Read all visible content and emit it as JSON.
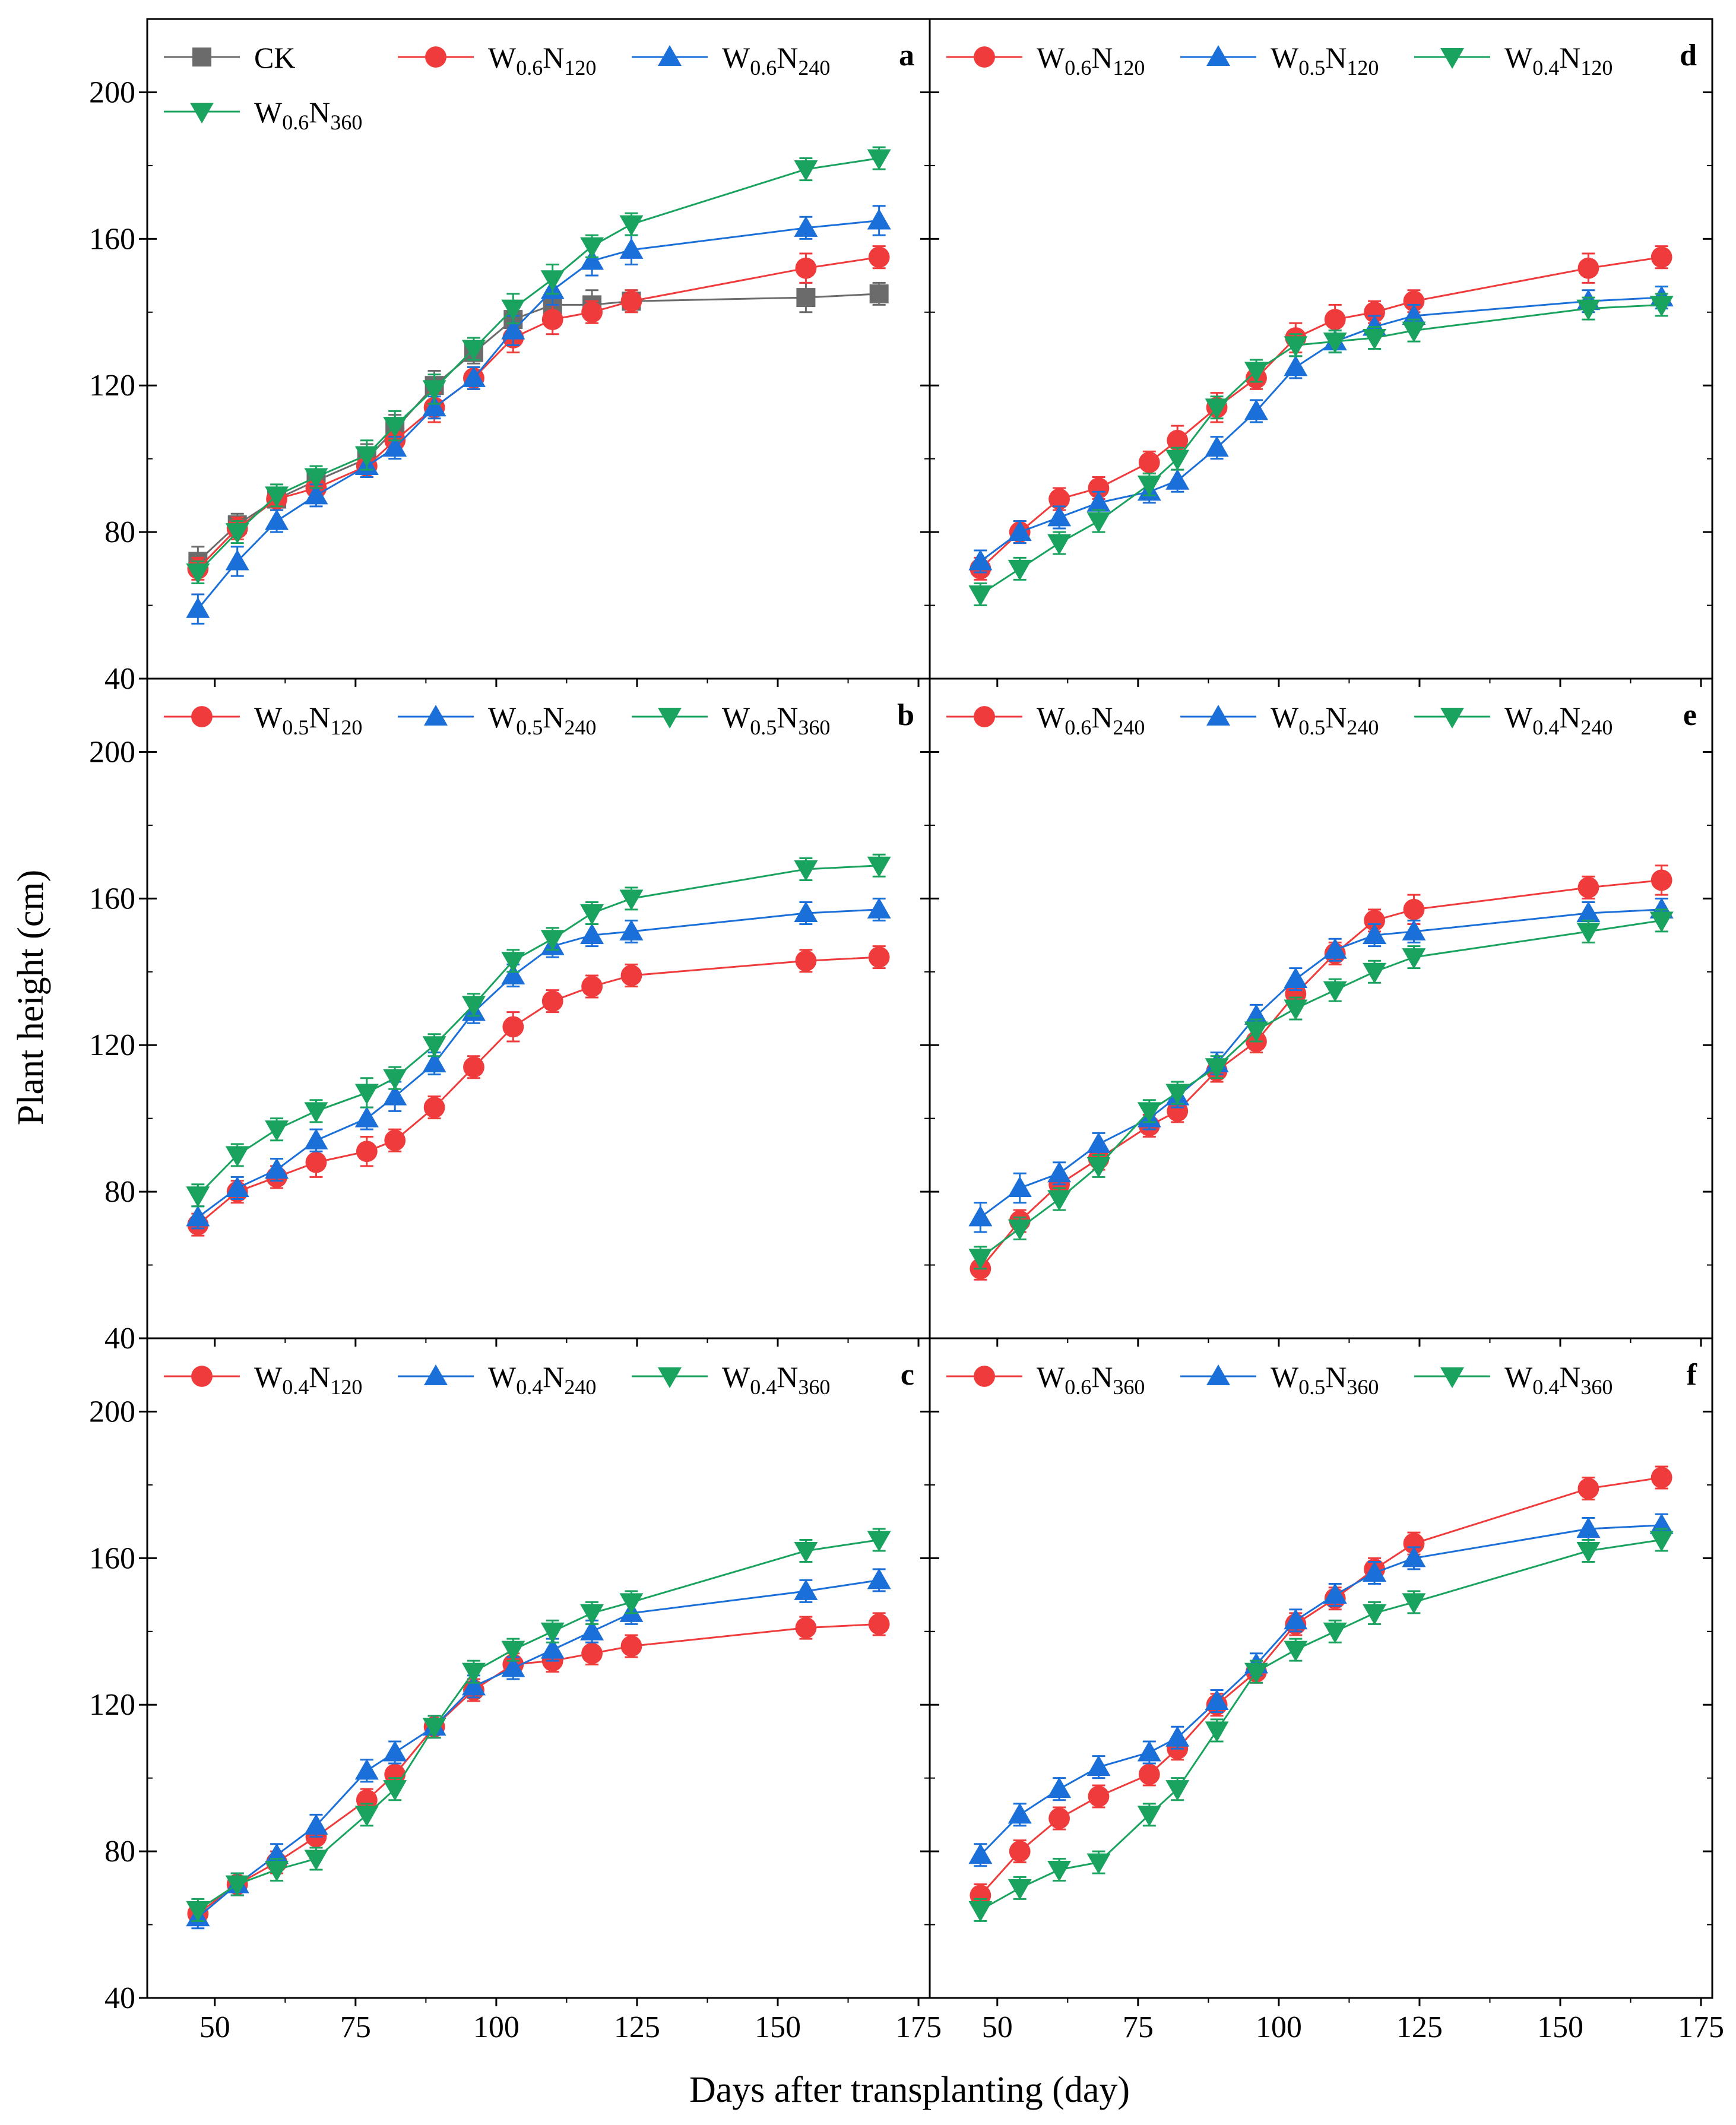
{
  "chart_data": {
    "type": "line",
    "shared": {
      "xlabel": "Days after transplanting (day)",
      "ylabel": "Plant height (cm)",
      "xlim": [
        38,
        177
      ],
      "ylim": [
        40,
        220
      ],
      "xticks": [
        50,
        75,
        100,
        125,
        150,
        175
      ],
      "yticks": [
        40,
        80,
        120,
        160,
        200
      ],
      "x": [
        47,
        54,
        61,
        68,
        77,
        82,
        89,
        96,
        103,
        110,
        117,
        124,
        155,
        168
      ]
    },
    "colors": {
      "CK": "#6b6b6b",
      "red": "#ef3b3b",
      "blue": "#1a6fd9",
      "green": "#1aa35f"
    },
    "panels": [
      {
        "letter": "a",
        "series": [
          {
            "name": "CK",
            "name_main": "CK",
            "name_sub1": "",
            "name_n": "",
            "name_sub2": "",
            "marker": "square",
            "color": "#6b6b6b",
            "values": [
              72,
              82,
              89,
              94,
              100,
              108,
              120,
              129,
              138,
              142,
              142,
              143,
              144,
              145
            ],
            "errors": [
              4,
              3,
              3,
              3,
              4,
              4,
              4,
              3,
              4,
              4,
              4,
              3,
              4,
              3
            ]
          },
          {
            "name": "W0.6N120",
            "name_main": "W",
            "name_sub1": "0.6",
            "name_n": "N",
            "name_sub2": "120",
            "marker": "circle",
            "color": "#ef3b3b",
            "values": [
              70,
              81,
              89,
              92,
              98,
              105,
              114,
              122,
              133,
              138,
              140,
              143,
              152,
              155
            ],
            "errors": [
              3,
              3,
              3,
              3,
              3,
              4,
              4,
              3,
              4,
              4,
              3,
              3,
              4,
              3
            ]
          },
          {
            "name": "W0.6N240",
            "name_main": "W",
            "name_sub1": "0.6",
            "name_n": "N",
            "name_sub2": "240",
            "marker": "triangle-up",
            "color": "#1a6fd9",
            "values": [
              59,
              72,
              83,
              90,
              98,
              103,
              114,
              122,
              135,
              146,
              154,
              157,
              163,
              165
            ],
            "errors": [
              4,
              4,
              3,
              3,
              3,
              3,
              3,
              3,
              4,
              4,
              4,
              4,
              3,
              4
            ]
          },
          {
            "name": "W0.6N360",
            "name_main": "W",
            "name_sub1": "0.6",
            "name_n": "N",
            "name_sub2": "360",
            "marker": "triangle-down",
            "color": "#1aa35f",
            "values": [
              69,
              80,
              90,
              95,
              101,
              109,
              119,
              130,
              141,
              149,
              158,
              164,
              179,
              182
            ],
            "errors": [
              3,
              3,
              3,
              3,
              4,
              4,
              4,
              3,
              4,
              4,
              3,
              3,
              3,
              3
            ]
          }
        ]
      },
      {
        "letter": "b",
        "series": [
          {
            "name": "W0.5N120",
            "name_main": "W",
            "name_sub1": "0.5",
            "name_n": "N",
            "name_sub2": "120",
            "marker": "circle",
            "color": "#ef3b3b",
            "values": [
              71,
              80,
              84,
              88,
              91,
              94,
              103,
              114,
              125,
              132,
              136,
              139,
              143,
              144
            ],
            "errors": [
              3,
              3,
              3,
              4,
              4,
              3,
              3,
              3,
              4,
              3,
              3,
              3,
              3,
              3
            ]
          },
          {
            "name": "W0.5N240",
            "name_main": "W",
            "name_sub1": "0.5",
            "name_n": "N",
            "name_sub2": "240",
            "marker": "triangle-up",
            "color": "#1a6fd9",
            "values": [
              73,
              81,
              86,
              94,
              100,
              106,
              115,
              129,
              139,
              147,
              150,
              151,
              156,
              157
            ],
            "errors": [
              3,
              3,
              3,
              3,
              3,
              4,
              3,
              3,
              3,
              3,
              3,
              3,
              3,
              3
            ]
          },
          {
            "name": "W0.5N360",
            "name_main": "W",
            "name_sub1": "0.5",
            "name_n": "N",
            "name_sub2": "360",
            "marker": "triangle-down",
            "color": "#1aa35f",
            "values": [
              79,
              90,
              97,
              102,
              107,
              111,
              120,
              131,
              143,
              149,
              156,
              160,
              168,
              169
            ],
            "errors": [
              3,
              3,
              3,
              3,
              4,
              3,
              3,
              3,
              3,
              3,
              3,
              3,
              3,
              3
            ]
          }
        ]
      },
      {
        "letter": "c",
        "series": [
          {
            "name": "W0.4N120",
            "name_main": "W",
            "name_sub1": "0.4",
            "name_n": "N",
            "name_sub2": "120",
            "marker": "circle",
            "color": "#ef3b3b",
            "values": [
              63,
              71,
              77,
              84,
              94,
              101,
              114,
              124,
              131,
              132,
              134,
              136,
              141,
              142
            ],
            "errors": [
              3,
              3,
              3,
              3,
              3,
              3,
              3,
              3,
              3,
              3,
              3,
              3,
              3,
              3
            ]
          },
          {
            "name": "W0.4N240",
            "name_main": "W",
            "name_sub1": "0.4",
            "name_n": "N",
            "name_sub2": "240",
            "marker": "triangle-up",
            "color": "#1a6fd9",
            "values": [
              62,
              71,
              79,
              87,
              102,
              107,
              114,
              125,
              130,
              135,
              140,
              145,
              151,
              154
            ],
            "errors": [
              3,
              3,
              3,
              3,
              3,
              3,
              3,
              3,
              3,
              3,
              3,
              3,
              3,
              3
            ]
          },
          {
            "name": "W0.4N360",
            "name_main": "W",
            "name_sub1": "0.4",
            "name_n": "N",
            "name_sub2": "360",
            "marker": "triangle-down",
            "color": "#1aa35f",
            "values": [
              64,
              71,
              75,
              78,
              90,
              97,
              114,
              129,
              135,
              140,
              145,
              148,
              162,
              165
            ],
            "errors": [
              3,
              3,
              3,
              3,
              3,
              3,
              3,
              3,
              3,
              3,
              3,
              3,
              3,
              3
            ]
          }
        ]
      },
      {
        "letter": "d",
        "series": [
          {
            "name": "W0.6N120",
            "name_main": "W",
            "name_sub1": "0.6",
            "name_n": "N",
            "name_sub2": "120",
            "marker": "circle",
            "color": "#ef3b3b",
            "values": [
              70,
              80,
              89,
              92,
              99,
              105,
              114,
              122,
              133,
              138,
              140,
              143,
              152,
              155
            ],
            "errors": [
              3,
              3,
              3,
              3,
              3,
              4,
              4,
              3,
              4,
              4,
              3,
              3,
              4,
              3
            ]
          },
          {
            "name": "W0.5N120",
            "name_main": "W",
            "name_sub1": "0.5",
            "name_n": "N",
            "name_sub2": "120",
            "marker": "triangle-up",
            "color": "#1a6fd9",
            "values": [
              72,
              80,
              84,
              88,
              91,
              94,
              103,
              113,
              125,
              132,
              136,
              139,
              143,
              144
            ],
            "errors": [
              3,
              3,
              3,
              3,
              3,
              3,
              3,
              3,
              3,
              3,
              3,
              3,
              3,
              3
            ]
          },
          {
            "name": "W0.4N120",
            "name_main": "W",
            "name_sub1": "0.4",
            "name_n": "N",
            "name_sub2": "120",
            "marker": "triangle-down",
            "color": "#1aa35f",
            "values": [
              63,
              70,
              77,
              83,
              93,
              100,
              114,
              124,
              131,
              132,
              133,
              135,
              141,
              142
            ],
            "errors": [
              3,
              3,
              3,
              3,
              3,
              3,
              3,
              3,
              3,
              3,
              3,
              3,
              3,
              3
            ]
          }
        ]
      },
      {
        "letter": "e",
        "series": [
          {
            "name": "W0.6N240",
            "name_main": "W",
            "name_sub1": "0.6",
            "name_n": "N",
            "name_sub2": "240",
            "marker": "circle",
            "color": "#ef3b3b",
            "values": [
              59,
              72,
              82,
              89,
              98,
              102,
              113,
              121,
              134,
              145,
              154,
              157,
              163,
              165
            ],
            "errors": [
              3,
              3,
              3,
              3,
              3,
              3,
              3,
              3,
              3,
              3,
              3,
              4,
              3,
              4
            ]
          },
          {
            "name": "W0.5N240",
            "name_main": "W",
            "name_sub1": "0.5",
            "name_n": "N",
            "name_sub2": "240",
            "marker": "triangle-up",
            "color": "#1a6fd9",
            "values": [
              73,
              81,
              85,
              93,
              100,
              106,
              115,
              128,
              138,
              146,
              150,
              151,
              156,
              157
            ],
            "errors": [
              4,
              4,
              3,
              3,
              3,
              3,
              3,
              3,
              3,
              3,
              3,
              3,
              3,
              3
            ]
          },
          {
            "name": "W0.4N240",
            "name_main": "W",
            "name_sub1": "0.4",
            "name_n": "N",
            "name_sub2": "240",
            "marker": "triangle-down",
            "color": "#1aa35f",
            "values": [
              62,
              70,
              78,
              87,
              102,
              107,
              114,
              124,
              130,
              135,
              140,
              144,
              151,
              154
            ],
            "errors": [
              3,
              3,
              3,
              3,
              3,
              3,
              3,
              3,
              3,
              3,
              3,
              3,
              3,
              3
            ]
          }
        ]
      },
      {
        "letter": "f",
        "series": [
          {
            "name": "W0.6N360",
            "name_main": "W",
            "name_sub1": "0.6",
            "name_n": "N",
            "name_sub2": "360",
            "marker": "circle",
            "color": "#ef3b3b",
            "values": [
              68,
              80,
              89,
              95,
              101,
              108,
              120,
              129,
              142,
              149,
              157,
              164,
              179,
              182
            ],
            "errors": [
              3,
              3,
              3,
              3,
              3,
              3,
              3,
              3,
              3,
              3,
              3,
              3,
              3,
              3
            ]
          },
          {
            "name": "W0.5N360",
            "name_main": "W",
            "name_sub1": "0.5",
            "name_n": "N",
            "name_sub2": "360",
            "marker": "triangle-up",
            "color": "#1a6fd9",
            "values": [
              79,
              90,
              97,
              103,
              107,
              111,
              121,
              131,
              143,
              150,
              156,
              160,
              168,
              169
            ],
            "errors": [
              3,
              3,
              3,
              3,
              3,
              3,
              3,
              3,
              3,
              3,
              3,
              3,
              3,
              3
            ]
          },
          {
            "name": "W0.4N360",
            "name_main": "W",
            "name_sub1": "0.4",
            "name_n": "N",
            "name_sub2": "360",
            "marker": "triangle-down",
            "color": "#1aa35f",
            "values": [
              64,
              70,
              75,
              77,
              90,
              97,
              113,
              129,
              135,
              140,
              145,
              148,
              162,
              165
            ],
            "errors": [
              3,
              3,
              3,
              3,
              3,
              3,
              3,
              3,
              3,
              3,
              3,
              3,
              3,
              3
            ]
          }
        ]
      }
    ]
  }
}
